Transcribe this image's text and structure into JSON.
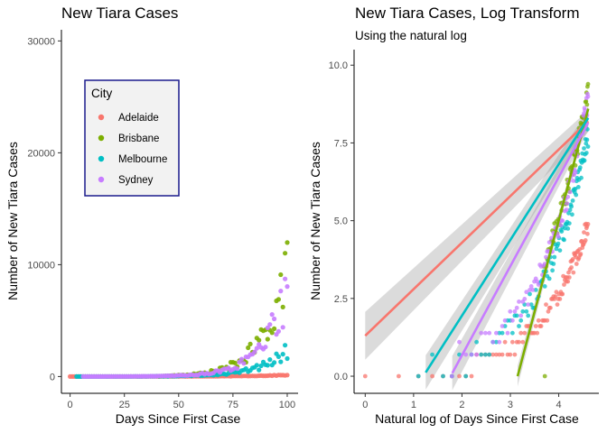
{
  "chart_data": [
    {
      "type": "scatter",
      "title": "New Tiara Cases",
      "xlabel": "Days Since First Case",
      "ylabel": "Number of New Tiara Cases",
      "xlim": [
        -4,
        105
      ],
      "ylim": [
        -1500,
        31000
      ],
      "xticks": [
        "0",
        "25",
        "50",
        "75",
        "100"
      ],
      "yticks": [
        "0",
        "10000",
        "20000",
        "30000"
      ],
      "grid": false,
      "legend": {
        "title": "City",
        "position": "top-left inside",
        "entries": [
          "Adelaide",
          "Brisbane",
          "Melbourne",
          "Sydney"
        ]
      },
      "series": [
        {
          "name": "Adelaide",
          "color": "#f8766d",
          "growth": 0.0487,
          "start": 0,
          "end": 100,
          "spread": 0.3
        },
        {
          "name": "Brisbane",
          "color": "#7cae00",
          "growth": 0.092,
          "start": 40,
          "end": 100,
          "spread": 0.35
        },
        {
          "name": "Melbourne",
          "color": "#00bfc4",
          "growth": 0.077,
          "start": 3,
          "end": 100,
          "spread": 0.35
        },
        {
          "name": "Sydney",
          "color": "#c77cff",
          "growth": 0.089,
          "start": 6,
          "end": 100,
          "spread": 0.35
        }
      ]
    },
    {
      "type": "scatter",
      "title": "New Tiara Cases, Log Transform",
      "subtitle": "Using the natural log",
      "xlabel": "Natural log of Days Since First Case",
      "ylabel": "Number of New Tiara Cases",
      "xlim": [
        -0.23,
        4.83
      ],
      "ylim": [
        -0.55,
        10.5
      ],
      "xticks": [
        "0",
        "1",
        "2",
        "3",
        "4"
      ],
      "yticks": [
        "0.0",
        "2.5",
        "5.0",
        "7.5",
        "10.0"
      ],
      "grid": false,
      "trendlines": [
        {
          "name": "Adelaide",
          "color": "#f8766d",
          "x0": 0,
          "y0": 1.3,
          "x1": 4.61,
          "y1": 8.2,
          "band": 0.35
        },
        {
          "name": "Brisbane",
          "color": "#7cae00",
          "x0": 3.15,
          "y0": 0.0,
          "x1": 4.61,
          "y1": 8.6,
          "band": 0.15
        },
        {
          "name": "Melbourne",
          "color": "#00bfc4",
          "x0": 1.25,
          "y0": 0.12,
          "x1": 4.61,
          "y1": 8.3,
          "band": 0.25
        },
        {
          "name": "Sydney",
          "color": "#c77cff",
          "x0": 1.8,
          "y0": 0.1,
          "x1": 4.61,
          "y1": 8.15,
          "band": 0.25
        }
      ]
    }
  ]
}
